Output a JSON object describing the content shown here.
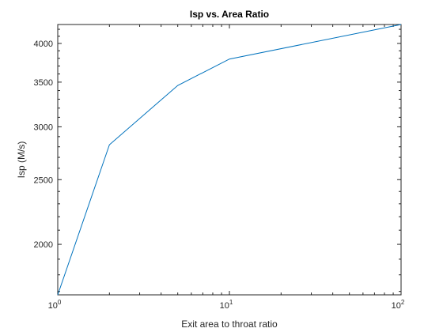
{
  "chart_data": {
    "type": "line",
    "title": "Isp vs. Area Ratio",
    "xlabel": "Exit area to throat ratio",
    "ylabel": "Isp (M/s)",
    "xscale": "log",
    "yscale": "log",
    "xlim": [
      1,
      100
    ],
    "ylim": [
      1680,
      4270
    ],
    "grid": false,
    "x": [
      1,
      2,
      5,
      10,
      100
    ],
    "series": [
      {
        "values": [
          1680,
          2820,
          3460,
          3790,
          4270
        ],
        "color": "#0072BD"
      }
    ],
    "x_ticks": [
      {
        "value": 1,
        "base": "10",
        "exp": "0"
      },
      {
        "value": 10,
        "base": "10",
        "exp": "1"
      },
      {
        "value": 100,
        "base": "10",
        "exp": "2"
      }
    ],
    "y_ticks": [
      2000,
      2500,
      3000,
      3500,
      4000
    ],
    "y_tick_labels": [
      "2000",
      "2500",
      "3000",
      "3500",
      "4000"
    ]
  }
}
